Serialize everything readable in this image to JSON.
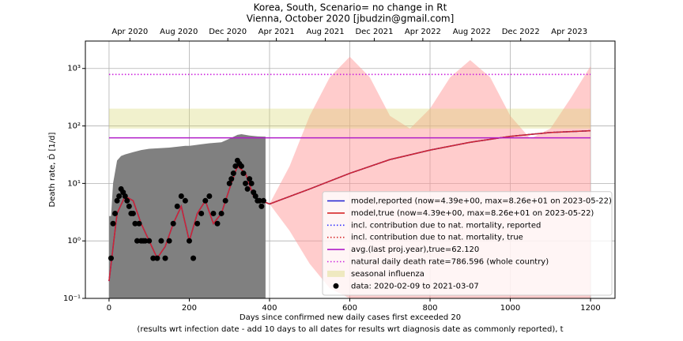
{
  "chart_data": {
    "type": "line",
    "title": "Korea, South, Scenario= no change in Rt",
    "subtitle": "Vienna, October 2020 [jbudzin@gmail.com]",
    "xlabel": "Days since confirmed new daily cases first exceeded 20",
    "xlabel2": "(results wrt infection date - add 10 days to all dates for results wrt diagnosis date as commonly reported), t",
    "ylabel": "Death rate, Ḋ [1/d]",
    "xlim": [
      -59,
      1261
    ],
    "ylim": [
      0.1,
      3000
    ],
    "log_y": true,
    "grid": true,
    "legend_loc": "lower right",
    "xticks": [
      0,
      200,
      400,
      600,
      800,
      1000,
      1200
    ],
    "yticks": [
      {
        "value": 0.1,
        "label": "10⁻¹"
      },
      {
        "value": 1,
        "label": "10⁰"
      },
      {
        "value": 10,
        "label": "10¹"
      },
      {
        "value": 100,
        "label": "10²"
      },
      {
        "value": 1000,
        "label": "10³"
      }
    ],
    "x2ticks": [
      {
        "value": 52,
        "label": "Apr 2020"
      },
      {
        "value": 174,
        "label": "Aug 2020"
      },
      {
        "value": 296,
        "label": "Dec 2020"
      },
      {
        "value": 417,
        "label": "Apr 2021"
      },
      {
        "value": 539,
        "label": "Aug 2021"
      },
      {
        "value": 661,
        "label": "Dec 2021"
      },
      {
        "value": 782,
        "label": "Apr 2022"
      },
      {
        "value": 904,
        "label": "Aug 2022"
      },
      {
        "value": 1026,
        "label": "Dec 2022"
      },
      {
        "value": 1147,
        "label": "Apr 2023"
      }
    ],
    "fills": [
      {
        "color": "#808080",
        "x": [
          0,
          5,
          10,
          20,
          30,
          40,
          60,
          80,
          100,
          150,
          190,
          200,
          210,
          230,
          250,
          280,
          300,
          320,
          330,
          350,
          370,
          390
        ],
        "high": [
          2.7,
          2.7,
          10,
          25,
          30,
          32,
          35,
          38,
          40,
          42,
          45,
          45,
          46,
          48,
          50,
          52,
          60,
          70,
          72,
          68,
          66,
          65
        ],
        "low": [
          0.1,
          0.1,
          0.1,
          0.1,
          0.1,
          0.1,
          0.1,
          0.1,
          0.1,
          0.1,
          0.1,
          0.1,
          0.1,
          0.1,
          0.1,
          0.1,
          0.1,
          0.1,
          0.1,
          0.1,
          0.1,
          0.1
        ]
      },
      {
        "color": "#ff9999",
        "x": [
          400,
          450,
          500,
          550,
          600,
          650,
          700,
          750,
          800,
          850,
          900,
          950,
          1000,
          1050,
          1100,
          1150,
          1200
        ],
        "high": [
          4.4,
          20,
          150,
          700,
          1600,
          700,
          150,
          90,
          200,
          700,
          1400,
          700,
          150,
          60,
          90,
          300,
          1100
        ],
        "low": [
          4.4,
          1.5,
          0.4,
          0.15,
          0.1,
          0.1,
          0.1,
          0.1,
          0.1,
          0.1,
          0.1,
          0.1,
          0.1,
          0.1,
          0.1,
          0.1,
          0.1
        ]
      },
      {
        "name": "seasonal influenza",
        "color": "#d8d870",
        "x": [
          0,
          1200
        ],
        "high": [
          200,
          200
        ],
        "low": [
          90,
          90
        ]
      }
    ],
    "series": [
      {
        "name": "model,reported (now=4.39e+00, max=8.26e+01 on 2023-05-22)",
        "color": "#1f1fd0",
        "style": "solid",
        "x": [
          0,
          20,
          40,
          60,
          80,
          100,
          120,
          140,
          160,
          180,
          200,
          220,
          240,
          260,
          280,
          300,
          320,
          340,
          360,
          380,
          400,
          500,
          600,
          700,
          800,
          900,
          1000,
          1100,
          1200
        ],
        "values": [
          0.2,
          3,
          6,
          5,
          2,
          1,
          0.5,
          0.8,
          2,
          4,
          1,
          3,
          5,
          2,
          3,
          8,
          20,
          15,
          6,
          5,
          4.39,
          8,
          15,
          26,
          38,
          52,
          66,
          77,
          82.6
        ]
      },
      {
        "name": "model,true (now=4.39e+00, max=8.26e+01 on 2023-05-22)",
        "color": "#d62728",
        "style": "solid",
        "x": [
          0,
          20,
          40,
          60,
          80,
          100,
          120,
          140,
          160,
          180,
          200,
          220,
          240,
          260,
          280,
          300,
          320,
          340,
          360,
          380,
          400,
          500,
          600,
          700,
          800,
          900,
          1000,
          1100,
          1200
        ],
        "values": [
          0.2,
          3,
          6,
          5,
          2,
          1,
          0.5,
          0.8,
          2,
          4,
          1,
          3,
          5,
          2,
          3,
          8,
          20,
          15,
          6,
          5,
          4.39,
          8,
          15,
          26,
          38,
          52,
          66,
          77,
          82.6
        ]
      },
      {
        "name": "incl. contribution due to nat. mortality, reported",
        "color": "#3030ff",
        "style": "dotted",
        "x": [
          0,
          20,
          40,
          60,
          80,
          100,
          120,
          140,
          160,
          180,
          200,
          220,
          240,
          260,
          280,
          300,
          320,
          340,
          360,
          380,
          400,
          500,
          600,
          700,
          800,
          900,
          1000,
          1100,
          1200
        ],
        "values": [
          0.2,
          3,
          6,
          5,
          2,
          1,
          0.5,
          0.8,
          2,
          4,
          1,
          3,
          5,
          2,
          3,
          8,
          20,
          15,
          6,
          5,
          4.39,
          8,
          15,
          26,
          38,
          52,
          66,
          77,
          82.6
        ]
      },
      {
        "name": "incl. contribution due to nat. mortality, true",
        "color": "#d62728",
        "style": "dotted",
        "x": [
          0,
          20,
          40,
          60,
          80,
          100,
          120,
          140,
          160,
          180,
          200,
          220,
          240,
          260,
          280,
          300,
          320,
          340,
          360,
          380,
          400,
          500,
          600,
          700,
          800,
          900,
          1000,
          1100,
          1200
        ],
        "values": [
          0.2,
          3,
          6,
          5,
          2,
          1,
          0.5,
          0.8,
          2,
          4,
          1,
          3,
          5,
          2,
          3,
          8,
          20,
          15,
          6,
          5,
          4.39,
          8,
          15,
          26,
          38,
          52,
          66,
          77,
          82.6
        ]
      },
      {
        "name": "avg.(last proj.year),true=62.120",
        "color": "#b01cc8",
        "style": "solid",
        "x": [
          0,
          1200
        ],
        "values": [
          62.12,
          62.12
        ]
      },
      {
        "name": "natural daily death rate=786.596 (whole country)",
        "color": "#cc22dd",
        "style": "dotted",
        "x": [
          0,
          1200
        ],
        "values": [
          786.596,
          786.596
        ]
      }
    ],
    "points": {
      "name": "data: 2020-02-09 to 2021-03-07",
      "color": "#000000",
      "x": [
        5,
        10,
        15,
        20,
        25,
        30,
        35,
        40,
        45,
        50,
        55,
        60,
        65,
        70,
        75,
        80,
        85,
        90,
        100,
        110,
        120,
        130,
        140,
        150,
        160,
        170,
        180,
        190,
        200,
        210,
        220,
        230,
        240,
        250,
        260,
        270,
        280,
        290,
        300,
        305,
        310,
        315,
        320,
        325,
        330,
        335,
        340,
        345,
        350,
        355,
        360,
        365,
        370,
        375,
        380,
        385
      ],
      "values": [
        0.5,
        2,
        3,
        5,
        6,
        8,
        7,
        6,
        5,
        4,
        3,
        3,
        2,
        1,
        2,
        1,
        1,
        1,
        1,
        0.5,
        0.5,
        1,
        0.5,
        1,
        2,
        4,
        6,
        5,
        1,
        0.5,
        2,
        3,
        5,
        6,
        3,
        2,
        3,
        5,
        10,
        12,
        15,
        20,
        25,
        22,
        20,
        15,
        10,
        8,
        12,
        10,
        7,
        6,
        5,
        5,
        4,
        5
      ]
    }
  }
}
